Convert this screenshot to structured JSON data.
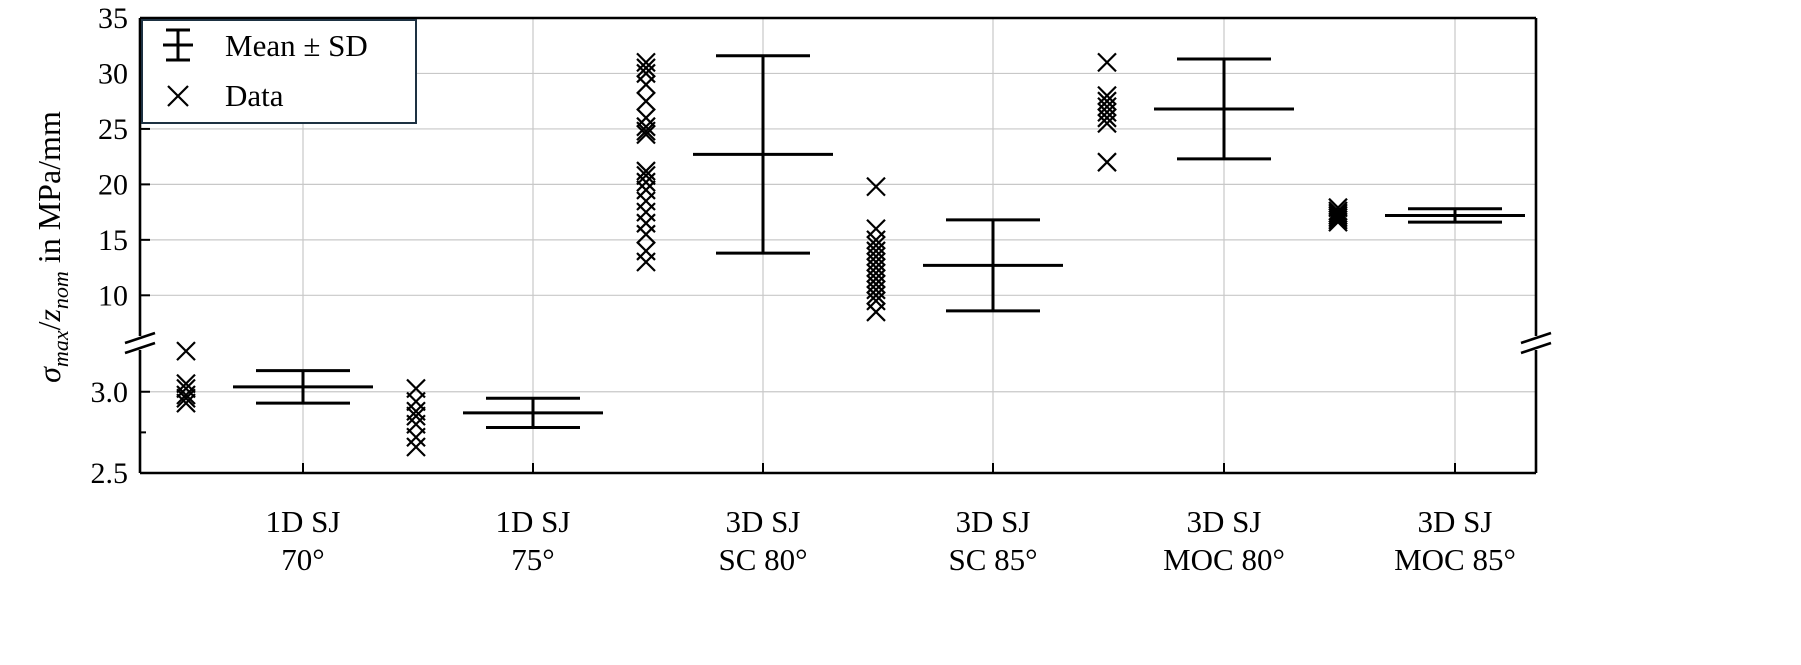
{
  "chart_data": {
    "type": "scatter",
    "ylabel_parts": {
      "sigma": "σ",
      "max": "max",
      "slash": "/",
      "z": "z",
      "nom": "nom",
      "unit": " in MPa/mm"
    },
    "categories": [
      [
        "1D SJ",
        "70°"
      ],
      [
        "1D SJ",
        "75°"
      ],
      [
        "3D SJ",
        "SC 80°"
      ],
      [
        "3D SJ",
        "SC 85°"
      ],
      [
        "3D SJ",
        "MOC 80°"
      ],
      [
        "3D SJ",
        "MOC 85°"
      ]
    ],
    "legend": {
      "placement": "top-left",
      "entries": [
        "Mean ± SD",
        "Data"
      ]
    },
    "grid": true,
    "broken_axis": {
      "lower": {
        "range": [
          2.5,
          3.3
        ],
        "ticks": [
          2.5,
          3.0
        ],
        "tick_labels": [
          "2.5",
          "3.0"
        ]
      },
      "upper": {
        "range": [
          5.7,
          35
        ],
        "ticks": [
          10,
          15,
          20,
          25,
          30,
          35
        ],
        "tick_labels": [
          "10",
          "15",
          "20",
          "25",
          "30",
          "35"
        ]
      }
    },
    "series": [
      {
        "name": "Data",
        "points": [
          [
            3.25,
            3.05,
            3.02,
            2.98,
            2.96,
            2.93
          ],
          [
            3.02,
            2.94,
            2.88,
            2.85,
            2.8,
            2.72,
            2.66
          ],
          [
            31.0,
            30.5,
            30.0,
            29.0,
            27.5,
            26.0,
            25.2,
            24.8,
            24.5,
            21.2,
            20.8,
            20.2,
            19.5,
            18.5,
            17.5,
            16.5,
            15.5,
            14.0,
            13.0
          ],
          [
            19.8,
            16.0,
            15.0,
            14.5,
            14.0,
            13.5,
            13.0,
            12.5,
            12.0,
            11.5,
            11.0,
            10.5,
            10.0,
            9.5,
            8.5
          ],
          [
            31.0,
            28.0,
            27.5,
            27.0,
            26.5,
            26.0,
            25.5,
            22.0
          ],
          [
            17.9,
            17.6,
            17.4,
            17.2,
            17.0,
            16.8,
            16.6
          ]
        ]
      },
      {
        "name": "Mean ± SD",
        "mean": [
          3.03,
          2.87,
          22.7,
          12.7,
          26.8,
          17.2
        ],
        "sd": [
          0.1,
          0.09,
          8.9,
          4.1,
          4.5,
          0.6
        ]
      }
    ]
  }
}
